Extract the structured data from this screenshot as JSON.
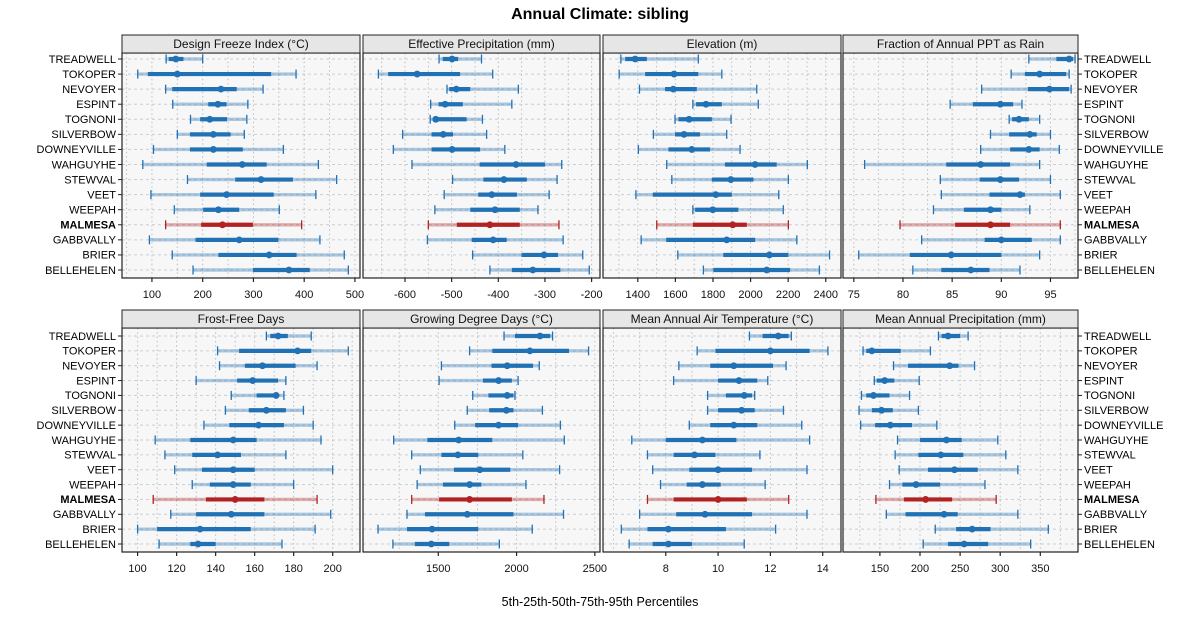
{
  "title": "Annual Climate: sibling",
  "caption": "5th-25th-50th-75th-95th Percentiles",
  "chart_data": {
    "type": "trellis-percentile-intervals",
    "title": "Annual Climate: sibling",
    "caption": "5th-25th-50th-75th-95th Percentiles",
    "percentile_labels": [
      "5th",
      "25th",
      "50th",
      "75th",
      "95th"
    ],
    "legend_note": "each row shows 5th-95th (light bar with end caps), 25th-75th (dark bar), median dot",
    "sites": [
      "TREADWELL",
      "TOKOPER",
      "NEVOYER",
      "ESPINT",
      "TOGNONI",
      "SILVERBOW",
      "DOWNEYVILLE",
      "WAHGUYHE",
      "STEWVAL",
      "VEET",
      "WEEPAH",
      "MALMESA",
      "GABBVALLY",
      "BRIER",
      "BELLEHELEN"
    ],
    "highlighted_site": "MALMESA",
    "colors": {
      "normal": "#2171b5",
      "highlight": "#b22222",
      "strip_bg": "#e6e6e6",
      "panel_bg": "#f7f7f7",
      "grid": "#b9bfc4",
      "row_guide": "#c9ced3",
      "border": "#222222"
    },
    "panels": [
      {
        "title": "Design Freeze Index (°C)",
        "xlim": [
          41,
          510
        ],
        "ticks": [
          100,
          200,
          300,
          400,
          500
        ],
        "grid_step": 50,
        "values": [
          [
            128,
            133,
            147,
            162,
            200
          ],
          [
            72,
            92,
            150,
            335,
            384
          ],
          [
            127,
            140,
            236,
            267,
            319
          ],
          [
            141,
            211,
            230,
            247,
            289
          ],
          [
            176,
            195,
            214,
            248,
            287
          ],
          [
            150,
            175,
            221,
            255,
            282
          ],
          [
            103,
            175,
            221,
            279,
            359
          ],
          [
            82,
            208,
            278,
            326,
            428
          ],
          [
            170,
            264,
            315,
            378,
            464
          ],
          [
            98,
            195,
            247,
            340,
            423
          ],
          [
            144,
            201,
            231,
            272,
            351
          ],
          [
            127,
            197,
            239,
            299,
            395
          ],
          [
            95,
            186,
            272,
            349,
            431
          ],
          [
            140,
            231,
            331,
            385,
            479
          ],
          [
            181,
            299,
            370,
            411,
            487
          ]
        ]
      },
      {
        "title": "Effective Precipitation (mm)",
        "xlim": [
          -690,
          -182
        ],
        "ticks": [
          -600,
          -500,
          -400,
          -300,
          -200
        ],
        "grid_step": 50,
        "values": [
          [
            -527,
            -519,
            -499,
            -486,
            -436
          ],
          [
            -657,
            -636,
            -574,
            -482,
            -412
          ],
          [
            -510,
            -505,
            -490,
            -460,
            -357
          ],
          [
            -545,
            -528,
            -514,
            -476,
            -371
          ],
          [
            -546,
            -540,
            -534,
            -468,
            -434
          ],
          [
            -605,
            -543,
            -518,
            -497,
            -425
          ],
          [
            -625,
            -543,
            -499,
            -439,
            -386
          ],
          [
            -585,
            -440,
            -362,
            -300,
            -264
          ],
          [
            -498,
            -432,
            -388,
            -339,
            -274
          ],
          [
            -516,
            -443,
            -414,
            -360,
            -291
          ],
          [
            -536,
            -460,
            -407,
            -354,
            -315
          ],
          [
            -550,
            -489,
            -418,
            -354,
            -270
          ],
          [
            -552,
            -457,
            -411,
            -382,
            -261
          ],
          [
            -455,
            -350,
            -302,
            -272,
            -219
          ],
          [
            -418,
            -371,
            -326,
            -267,
            -205
          ]
        ]
      },
      {
        "title": "Elevation (m)",
        "xlim": [
          1215,
          2481
        ],
        "ticks": [
          1400,
          1600,
          1800,
          2000,
          2200,
          2400
        ],
        "grid_step": 100,
        "values": [
          [
            1310,
            1333,
            1386,
            1448,
            1722
          ],
          [
            1301,
            1439,
            1593,
            1722,
            1847
          ],
          [
            1409,
            1545,
            1589,
            1714,
            2033
          ],
          [
            1693,
            1710,
            1763,
            1847,
            2041
          ],
          [
            1598,
            1616,
            1673,
            1794,
            1896
          ],
          [
            1483,
            1598,
            1646,
            1731,
            1873
          ],
          [
            1403,
            1563,
            1687,
            1785,
            1944
          ],
          [
            1554,
            1864,
            2024,
            2139,
            2302
          ],
          [
            1581,
            1794,
            1895,
            2015,
            2201
          ],
          [
            1390,
            1480,
            1815,
            1900,
            2150
          ],
          [
            1693,
            1705,
            1799,
            1935,
            2174
          ],
          [
            1501,
            1693,
            1905,
            1980,
            2201
          ],
          [
            1418,
            1551,
            1873,
            2024,
            2246
          ],
          [
            1613,
            1855,
            2100,
            2201,
            2420
          ],
          [
            1749,
            1802,
            2086,
            2210,
            2366
          ]
        ]
      },
      {
        "title": "Fraction of Annual PPT as Rain",
        "xlim": [
          73.9,
          97.8
        ],
        "ticks": [
          75,
          80,
          85,
          90,
          95
        ],
        "grid_step": 2.5,
        "values": [
          [
            92.8,
            95.6,
            96.9,
            97.3,
            97.5
          ],
          [
            91,
            92.4,
            93.9,
            96.6,
            96.9
          ],
          [
            88,
            92.7,
            94.9,
            96.9,
            97.1
          ],
          [
            84.8,
            87.1,
            89.9,
            91.2,
            92.1
          ],
          [
            90.8,
            91.1,
            91.8,
            92.8,
            93.9
          ],
          [
            88.9,
            90.8,
            92.9,
            93.6,
            95
          ],
          [
            87.9,
            90.9,
            92.8,
            93.9,
            95.9
          ],
          [
            76.1,
            84.4,
            87.9,
            90.9,
            93.9
          ],
          [
            83.8,
            87.8,
            89.9,
            91.8,
            95
          ],
          [
            83.9,
            88.8,
            91.9,
            92.4,
            96
          ],
          [
            83.1,
            86.2,
            88.9,
            90,
            92.9
          ],
          [
            79.7,
            85.3,
            88.9,
            90.9,
            96
          ],
          [
            81.9,
            88.3,
            90,
            93.1,
            96
          ],
          [
            75.5,
            80.7,
            84.9,
            90,
            93.9
          ],
          [
            81,
            83.9,
            86.9,
            88.8,
            91.9
          ]
        ]
      },
      {
        "title": "Frost-Free Days",
        "xlim": [
          92,
          214
        ],
        "ticks": [
          100,
          120,
          140,
          160,
          180,
          200
        ],
        "grid_step": 10,
        "values": [
          [
            166,
            168,
            172,
            177,
            189
          ],
          [
            141,
            152,
            182,
            189,
            208
          ],
          [
            142,
            155,
            164,
            181,
            192
          ],
          [
            130,
            151,
            159,
            172,
            176
          ],
          [
            148,
            161,
            171,
            172,
            175
          ],
          [
            145,
            157,
            166,
            176,
            185
          ],
          [
            134,
            147,
            162,
            175,
            190
          ],
          [
            109,
            127,
            149,
            161,
            194
          ],
          [
            114,
            128,
            141,
            153,
            176
          ],
          [
            119,
            133,
            149,
            160,
            200
          ],
          [
            128,
            137,
            149,
            158,
            180
          ],
          [
            108,
            135,
            150,
            165,
            192
          ],
          [
            117,
            130,
            148,
            165,
            199
          ],
          [
            100,
            110,
            132,
            158,
            191
          ],
          [
            111,
            127,
            131,
            140,
            174
          ]
        ]
      },
      {
        "title": "Growing Degree Days (°C)",
        "xlim": [
          1019,
          2533
        ],
        "ticks": [
          1500,
          2000,
          2500
        ],
        "grid_step": 250,
        "values": [
          [
            1920,
            1990,
            2150,
            2215,
            2230
          ],
          [
            1700,
            1845,
            2085,
            2335,
            2460
          ],
          [
            1520,
            1840,
            1940,
            2105,
            2145
          ],
          [
            1505,
            1785,
            1885,
            1970,
            2010
          ],
          [
            1720,
            1820,
            1940,
            1980,
            1990
          ],
          [
            1685,
            1825,
            1935,
            1980,
            2165
          ],
          [
            1605,
            1735,
            1885,
            2010,
            2280
          ],
          [
            1215,
            1430,
            1630,
            1845,
            2305
          ],
          [
            1330,
            1520,
            1625,
            1755,
            2040
          ],
          [
            1385,
            1600,
            1765,
            1960,
            2275
          ],
          [
            1365,
            1530,
            1700,
            1775,
            2060
          ],
          [
            1330,
            1505,
            1700,
            1970,
            2175
          ],
          [
            1300,
            1415,
            1685,
            1980,
            2300
          ],
          [
            1115,
            1300,
            1460,
            1755,
            2100
          ],
          [
            1210,
            1350,
            1455,
            1570,
            1890
          ]
        ]
      },
      {
        "title": "Mean Annual Air Temperature (°C)",
        "xlim": [
          5.6,
          14.7
        ],
        "ticks": [
          8,
          10,
          12,
          14
        ],
        "grid_step": 1,
        "values": [
          [
            11.2,
            11.7,
            12.3,
            12.7,
            12.8
          ],
          [
            9.2,
            9.9,
            12,
            13.5,
            14.2
          ],
          [
            8.5,
            9.7,
            10.6,
            12.1,
            12.6
          ],
          [
            8.3,
            10,
            10.8,
            11.5,
            11.9
          ],
          [
            9.6,
            10.3,
            11,
            11.3,
            11.4
          ],
          [
            9.6,
            10,
            10.9,
            11.4,
            12.5
          ],
          [
            8.9,
            9.7,
            10.6,
            11.5,
            13.2
          ],
          [
            6.7,
            8,
            9.4,
            10.7,
            13.5
          ],
          [
            7.3,
            8.3,
            9.1,
            9.9,
            11.6
          ],
          [
            7.5,
            8.9,
            10,
            11.3,
            13.4
          ],
          [
            7.8,
            8.8,
            9.4,
            10.1,
            11.8
          ],
          [
            7.3,
            8.3,
            10,
            11.1,
            12.7
          ],
          [
            7,
            8.4,
            9.5,
            11.3,
            13.4
          ],
          [
            6.3,
            7.3,
            8.1,
            10.3,
            12.2
          ],
          [
            6.6,
            7.5,
            8.1,
            9,
            11
          ]
        ]
      },
      {
        "title": "Mean Annual Precipitation (mm)",
        "xlim": [
          104,
          397
        ],
        "ticks": [
          150,
          200,
          250,
          300,
          350
        ],
        "grid_step": 25,
        "values": [
          [
            223,
            227,
            235,
            250,
            260
          ],
          [
            129,
            133,
            140,
            176,
            213
          ],
          [
            167,
            185,
            237,
            248,
            268
          ],
          [
            143,
            146,
            156,
            168,
            199
          ],
          [
            127,
            133,
            142,
            162,
            187
          ],
          [
            124,
            140,
            152,
            166,
            198
          ],
          [
            126,
            144,
            163,
            190,
            221
          ],
          [
            172,
            200,
            233,
            252,
            297
          ],
          [
            169,
            198,
            226,
            254,
            307
          ],
          [
            174,
            210,
            243,
            272,
            322
          ],
          [
            162,
            178,
            195,
            225,
            281
          ],
          [
            145,
            180,
            207,
            240,
            295
          ],
          [
            158,
            182,
            230,
            247,
            322
          ],
          [
            219,
            245,
            265,
            288,
            360
          ],
          [
            204,
            235,
            255,
            285,
            338
          ]
        ]
      }
    ]
  }
}
